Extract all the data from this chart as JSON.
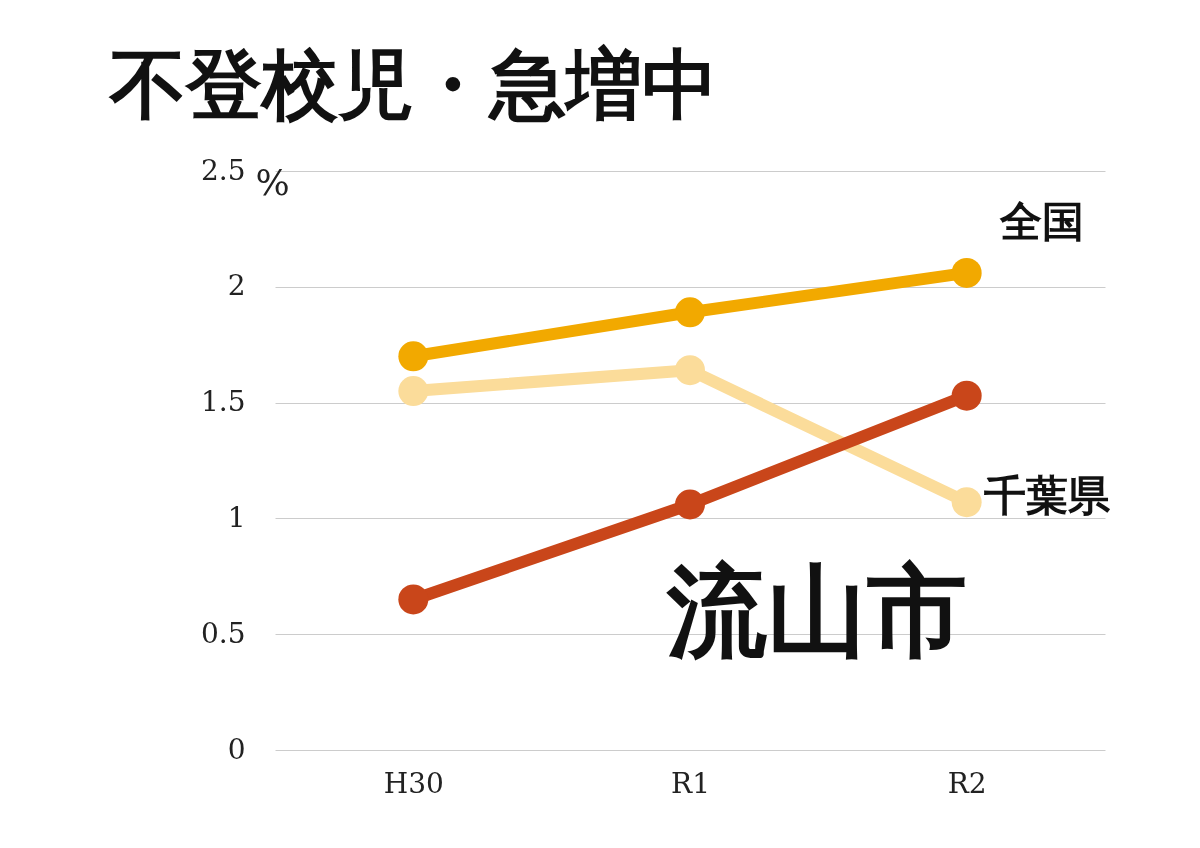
{
  "chart_data": {
    "type": "line",
    "title": "不登校児・急増中",
    "ylabel": "%",
    "categories": [
      "H30",
      "R1",
      "R2"
    ],
    "series": [
      {
        "name": "全国",
        "color": "#f2a900",
        "values": [
          1.7,
          1.89,
          2.06
        ]
      },
      {
        "name": "千葉県",
        "color": "#fbdc9a",
        "values": [
          1.55,
          1.64,
          1.07
        ]
      },
      {
        "name": "流山市",
        "color": "#c9461a",
        "values": [
          0.65,
          1.06,
          1.53
        ]
      }
    ],
    "ylim": [
      0,
      2.5
    ],
    "yticks": [
      0,
      0.5,
      1,
      1.5,
      2,
      2.5
    ],
    "grid": "y",
    "legend": false,
    "marker": "circle",
    "line_style": "solid"
  }
}
